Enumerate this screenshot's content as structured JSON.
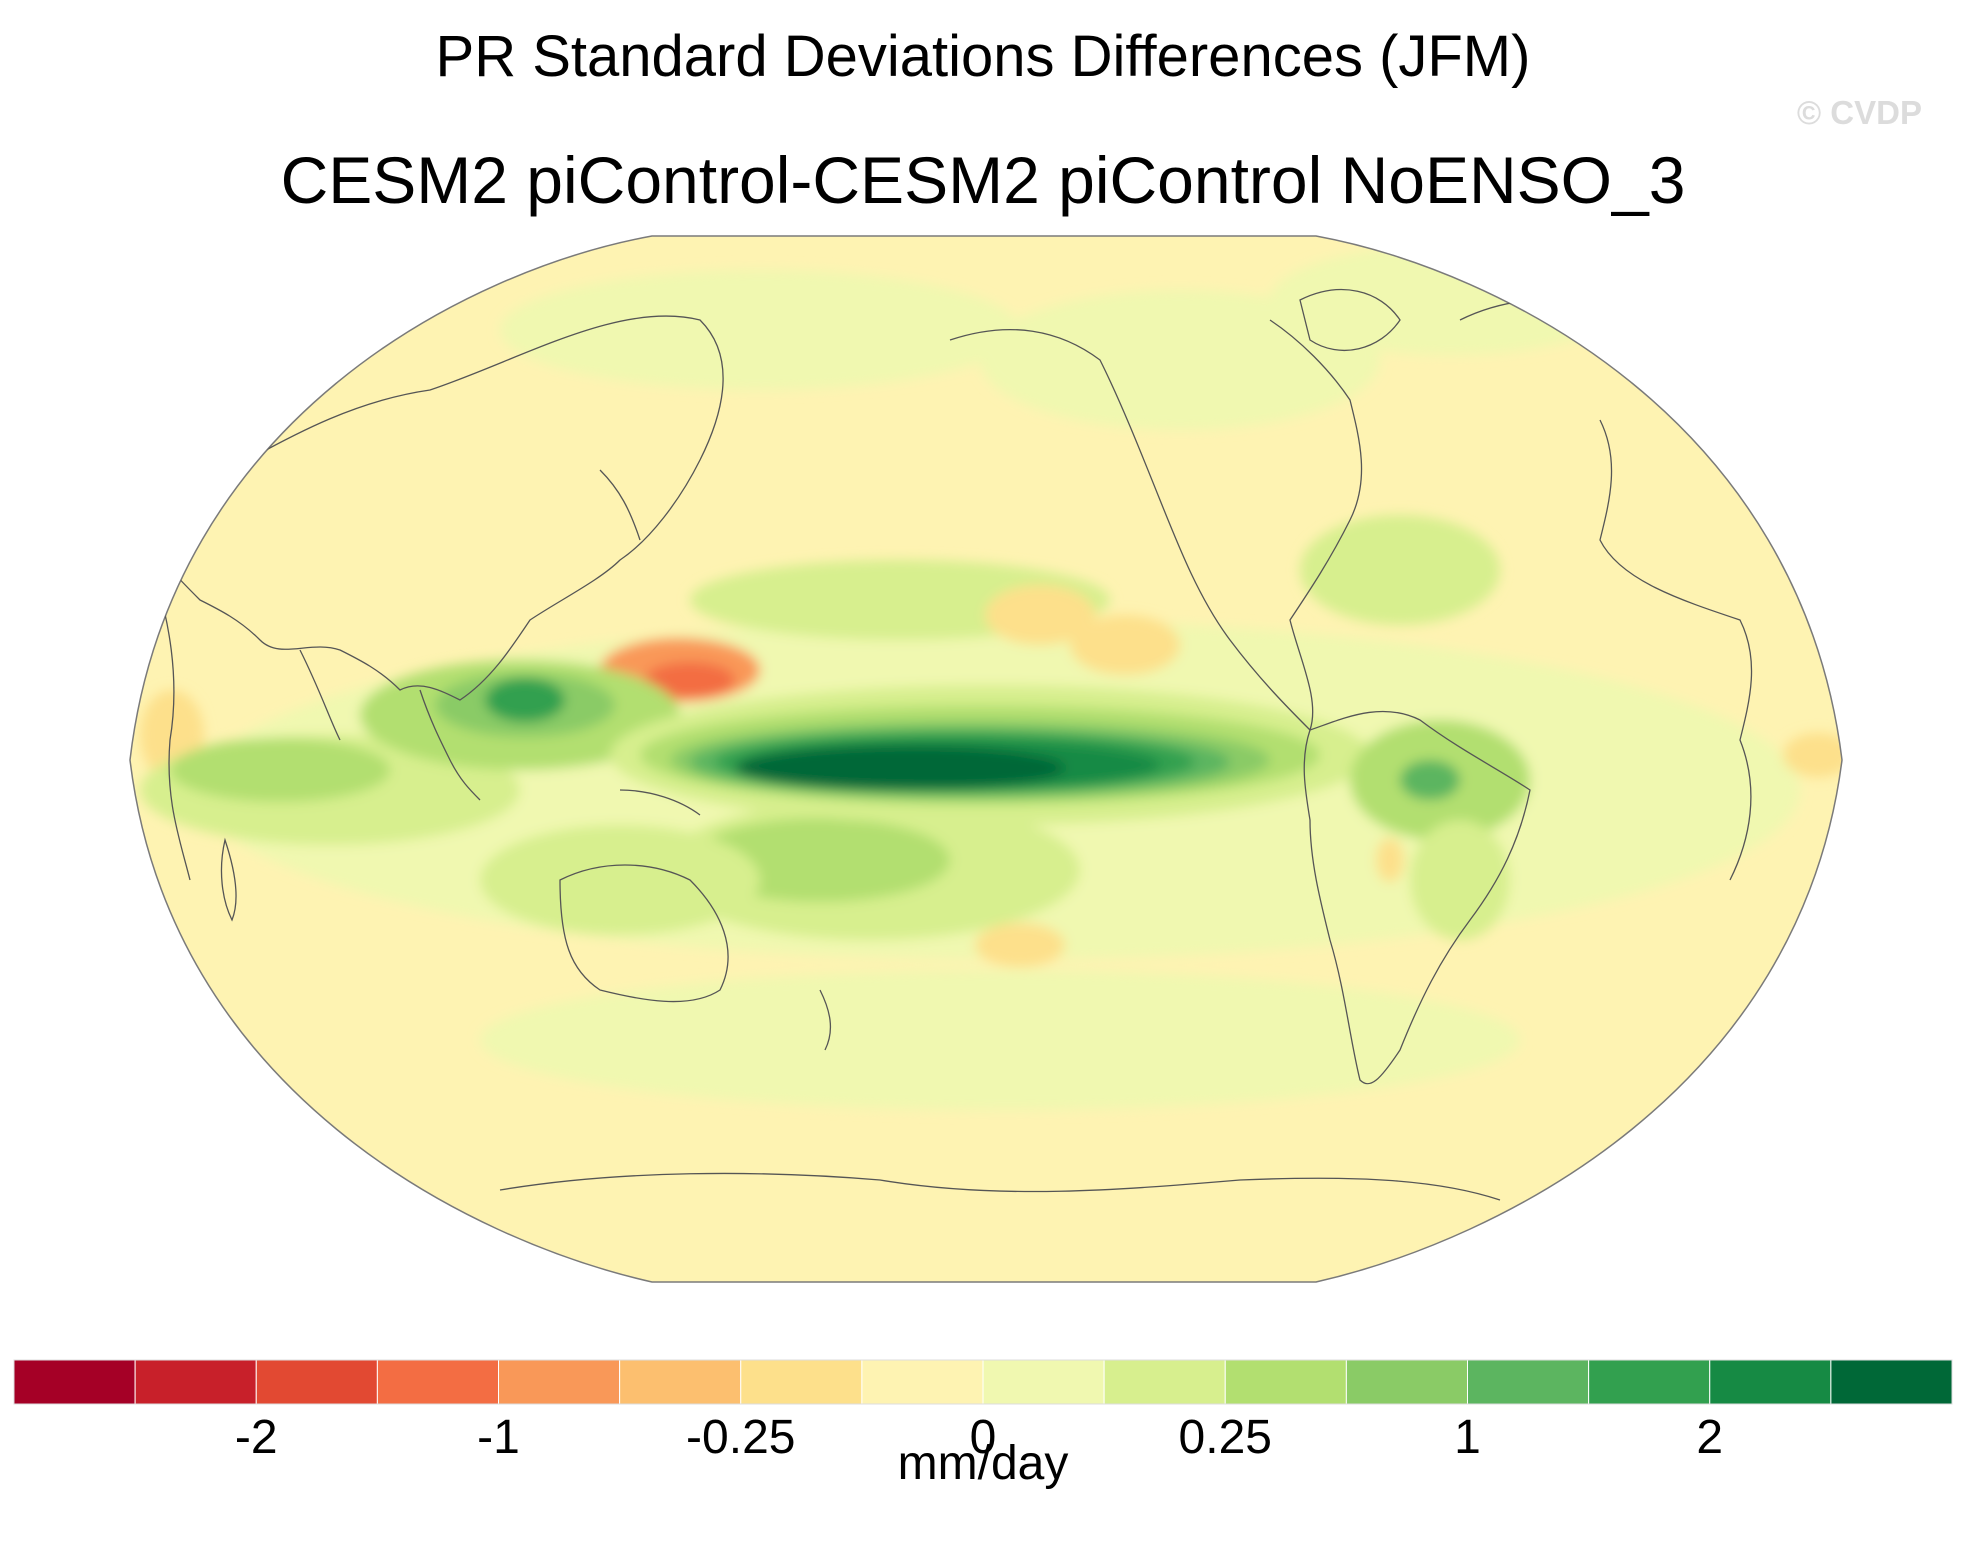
{
  "title": "PR Standard Deviations Differences (JFM)",
  "subtitle": "CESM2 piControl-CESM2 piControl NoENSO_3",
  "credit": "© CVDP",
  "colorbar": {
    "units": "mm/day",
    "labels": [
      "-2",
      "-1",
      "-0.25",
      "0",
      "0.25",
      "1",
      "2"
    ],
    "colors": [
      "#a50026",
      "#c8202a",
      "#e24932",
      "#f36d43",
      "#f99858",
      "#fcbf6f",
      "#fde08b",
      "#fef3b2",
      "#f0f8b0",
      "#d7ef8e",
      "#b2df70",
      "#8acb66",
      "#5cb560",
      "#32a04f",
      "#168a44",
      "#006837"
    ]
  },
  "chart_data": {
    "type": "heatmap",
    "projection": "Robinson",
    "variable": "PR standard deviation difference",
    "season": "JFM",
    "units": "mm/day",
    "center_longitude": 180,
    "features": [
      {
        "name": "equatorial-pacific-maximum",
        "lon": [
          155,
          265
        ],
        "lat": [
          -5,
          5
        ],
        "level": 2.5
      },
      {
        "name": "equatorial-pacific-band",
        "lon": [
          140,
          280
        ],
        "lat": [
          -10,
          10
        ],
        "level": 1
      },
      {
        "name": "spcz-band",
        "lon": [
          150,
          240
        ],
        "lat": [
          -25,
          -5
        ],
        "level": 0.5
      },
      {
        "name": "itcz-north-band",
        "lon": [
          150,
          250
        ],
        "lat": [
          8,
          18
        ],
        "level": 0.25
      },
      {
        "name": "maritime-continent",
        "lon": [
          95,
          150
        ],
        "lat": [
          -10,
          15
        ],
        "level": 1
      },
      {
        "name": "indian-ocean-band",
        "lon": [
          40,
          100
        ],
        "lat": [
          -15,
          5
        ],
        "level": 0.5
      },
      {
        "name": "amazon",
        "lon": [
          290,
          320
        ],
        "lat": [
          -10,
          5
        ],
        "level": 1
      },
      {
        "name": "western-pacific-negative",
        "lon": [
          130,
          165
        ],
        "lat": [
          10,
          22
        ],
        "level": -0.5
      },
      {
        "name": "north-pacific-negative",
        "lon": [
          210,
          230
        ],
        "lat": [
          15,
          25
        ],
        "level": -0.25
      },
      {
        "name": "south-pacific-negative",
        "lon": [
          200,
          220
        ],
        "lat": [
          -30,
          -22
        ],
        "level": -0.25
      },
      {
        "name": "africa-west-negative",
        "lon": [
          20,
          35
        ],
        "lat": [
          -5,
          5
        ],
        "level": -0.25
      },
      {
        "name": "north-atlantic-positive",
        "lon": [
          285,
          320
        ],
        "lat": [
          25,
          40
        ],
        "level": 0.25
      }
    ]
  }
}
